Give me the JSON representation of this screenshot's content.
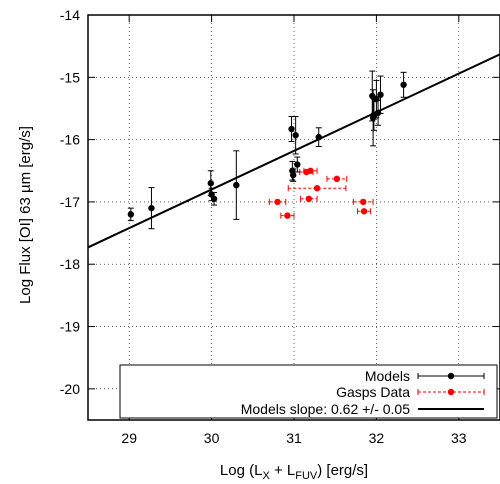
{
  "chart_data": {
    "type": "scatter",
    "xlabel_main": "Log (L",
    "xlabel_sub1": "X",
    "xlabel_mid": " + L",
    "xlabel_sub2": "FUV",
    "xlabel_end": ") [erg/s]",
    "ylabel": "Log Flux [OI] 63 µm [erg/s]",
    "xlim": [
      28.5,
      33.5
    ],
    "ylim": [
      -20.5,
      -14
    ],
    "xticks": [
      29,
      30,
      31,
      32,
      33
    ],
    "yticks": [
      -20,
      -19,
      -18,
      -17,
      -16,
      -15,
      -14
    ],
    "grid": true,
    "legend_position": "bottom-right",
    "series": [
      {
        "name": "Models",
        "color": "#000000",
        "points": [
          {
            "x": 29.02,
            "y": -17.2,
            "yerr": 0.1
          },
          {
            "x": 29.27,
            "y": -17.1,
            "yerr": 0.33
          },
          {
            "x": 29.99,
            "y": -16.7,
            "yerr": 0.2
          },
          {
            "x": 30.0,
            "y": -16.88,
            "yerr": 0.1
          },
          {
            "x": 30.03,
            "y": -16.95,
            "yerr": 0.1
          },
          {
            "x": 30.3,
            "y": -16.73,
            "yerr": 0.55
          },
          {
            "x": 30.97,
            "y": -15.83,
            "yerr": 0.2
          },
          {
            "x": 30.98,
            "y": -16.5,
            "yerr": 0.15
          },
          {
            "x": 30.99,
            "y": -16.57,
            "yerr": 0.1
          },
          {
            "x": 31.02,
            "y": -15.93,
            "yerr": 0.3
          },
          {
            "x": 31.04,
            "y": -16.4,
            "yerr": 0.12
          },
          {
            "x": 31.3,
            "y": -15.96,
            "yerr": 0.15
          },
          {
            "x": 31.95,
            "y": -15.3,
            "yerr": 0.4
          },
          {
            "x": 31.96,
            "y": -15.65,
            "yerr": 0.45
          },
          {
            "x": 31.97,
            "y": -15.6,
            "yerr": 0.25
          },
          {
            "x": 32.0,
            "y": -15.35,
            "yerr": 0.3
          },
          {
            "x": 32.02,
            "y": -15.57,
            "yerr": 0.2
          },
          {
            "x": 32.05,
            "y": -15.28,
            "yerr": 0.3
          },
          {
            "x": 32.33,
            "y": -15.12,
            "yerr": 0.2
          }
        ]
      },
      {
        "name": "Gasps Data",
        "color": "#ff0000",
        "points": [
          {
            "x": 30.8,
            "y": -17.0,
            "xerr": 0.1
          },
          {
            "x": 30.92,
            "y": -17.22,
            "xerr": 0.08
          },
          {
            "x": 31.15,
            "y": -16.52,
            "xerr": 0.08
          },
          {
            "x": 31.2,
            "y": -16.5,
            "xerr": 0.08
          },
          {
            "x": 31.18,
            "y": -16.95,
            "xerr": 0.1
          },
          {
            "x": 31.28,
            "y": -16.78,
            "xerr": 0.35
          },
          {
            "x": 31.52,
            "y": -16.63,
            "xerr": 0.12
          },
          {
            "x": 31.84,
            "y": -17.0,
            "xerr": 0.12
          },
          {
            "x": 31.85,
            "y": -17.15,
            "xerr": 0.08
          }
        ]
      },
      {
        "name": "Models slope: 0.62 +/- 0.05",
        "type": "line",
        "color": "#000000",
        "slope": 0.62,
        "intercept_at_x0": -17.73,
        "x0": 28.5
      }
    ]
  }
}
